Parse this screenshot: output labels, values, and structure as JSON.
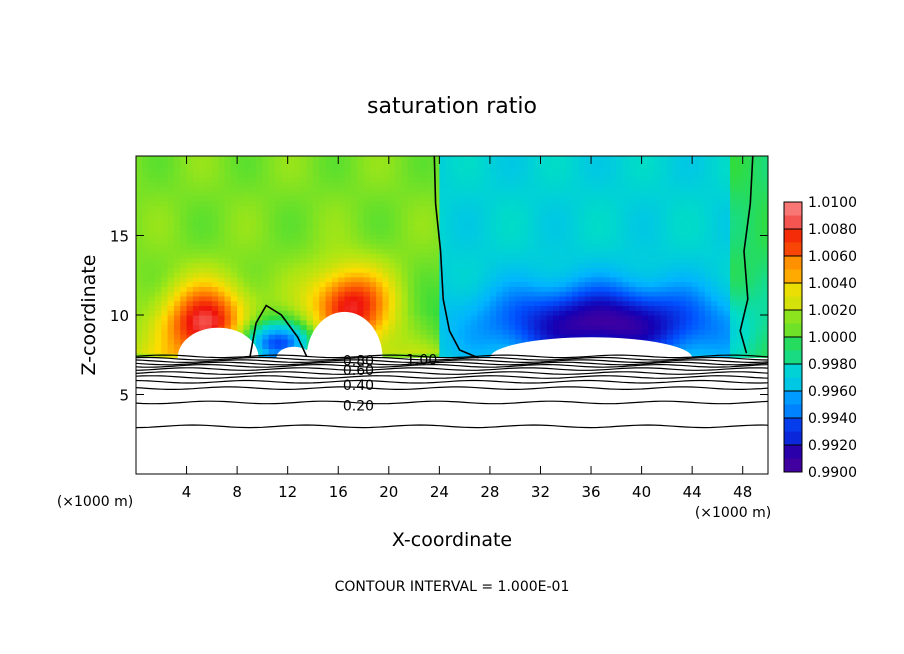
{
  "chart_data": {
    "type": "heatmap",
    "title": "saturation ratio",
    "xlabel": "X-coordinate",
    "ylabel": "Z-coordinate",
    "x_unit_left": "(×1000 m)",
    "x_unit_right": "(×1000 m)",
    "footer": "CONTOUR INTERVAL = 1.000E-01",
    "xlim": [
      0,
      50
    ],
    "ylim": [
      0,
      20
    ],
    "x_ticks": [
      4,
      8,
      12,
      16,
      20,
      24,
      28,
      32,
      36,
      40,
      44,
      48
    ],
    "y_ticks": [
      5,
      10,
      15
    ],
    "colorbar": {
      "min": 0.99,
      "max": 1.01,
      "labels": [
        "1.0100",
        "1.0080",
        "1.0060",
        "1.0040",
        "1.0020",
        "1.0000",
        "0.9980",
        "0.9960",
        "0.9940",
        "0.9920",
        "0.9900"
      ],
      "values": [
        1.01,
        1.008,
        1.006,
        1.004,
        1.002,
        1.0,
        0.998,
        0.996,
        0.994,
        0.992,
        0.99
      ]
    },
    "contour_labels": [
      {
        "text": "0.80",
        "x": 17.6,
        "z": 7.15
      },
      {
        "text": "1.00",
        "x": 22.6,
        "z": 7.2
      },
      {
        "text": "0.60",
        "x": 17.6,
        "z": 6.55
      },
      {
        "text": "0.40",
        "x": 17.6,
        "z": 5.6
      },
      {
        "text": "0.20",
        "x": 17.6,
        "z": 4.3
      }
    ],
    "contour_z_levels": [
      7.4,
      7.25,
      7.1,
      6.95,
      6.8,
      6.6,
      6.35,
      6.1,
      5.8,
      5.4,
      4.5,
      3.0
    ],
    "field_sources": [
      {
        "name": "left warm cell",
        "x": 5.5,
        "z": 9.5,
        "value": 1.009
      },
      {
        "name": "center warm cell",
        "x": 17,
        "z": 10.5,
        "value": 1.0085
      },
      {
        "name": "small dry pocket",
        "x": 11,
        "z": 8.2,
        "value": 0.993
      },
      {
        "name": "right dry region",
        "x": 37,
        "z": 9.5,
        "value": 0.991
      }
    ]
  }
}
